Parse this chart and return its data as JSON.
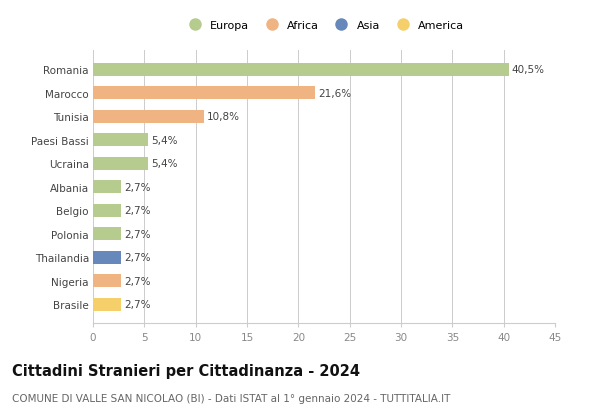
{
  "categories": [
    "Romania",
    "Marocco",
    "Tunisia",
    "Paesi Bassi",
    "Ucraina",
    "Albania",
    "Belgio",
    "Polonia",
    "Thailandia",
    "Nigeria",
    "Brasile"
  ],
  "values": [
    40.5,
    21.6,
    10.8,
    5.4,
    5.4,
    2.7,
    2.7,
    2.7,
    2.7,
    2.7,
    2.7
  ],
  "labels": [
    "40,5%",
    "21,6%",
    "10,8%",
    "5,4%",
    "5,4%",
    "2,7%",
    "2,7%",
    "2,7%",
    "2,7%",
    "2,7%",
    "2,7%"
  ],
  "colors": [
    "#b5cc8e",
    "#f0b483",
    "#f0b483",
    "#b5cc8e",
    "#b5cc8e",
    "#b5cc8e",
    "#b5cc8e",
    "#b5cc8e",
    "#6688bb",
    "#f0b483",
    "#f5d06a"
  ],
  "legend_labels": [
    "Europa",
    "Africa",
    "Asia",
    "America"
  ],
  "legend_colors": [
    "#b5cc8e",
    "#f0b483",
    "#6688bb",
    "#f5d06a"
  ],
  "title": "Cittadini Stranieri per Cittadinanza - 2024",
  "subtitle": "COMUNE DI VALLE SAN NICOLAO (BI) - Dati ISTAT al 1° gennaio 2024 - TUTTITALIA.IT",
  "xlim": [
    0,
    45
  ],
  "xticks": [
    0,
    5,
    10,
    15,
    20,
    25,
    30,
    35,
    40,
    45
  ],
  "background_color": "#ffffff",
  "grid_color": "#cccccc",
  "bar_height": 0.55,
  "label_fontsize": 7.5,
  "tick_fontsize": 7.5,
  "title_fontsize": 10.5,
  "subtitle_fontsize": 7.5
}
